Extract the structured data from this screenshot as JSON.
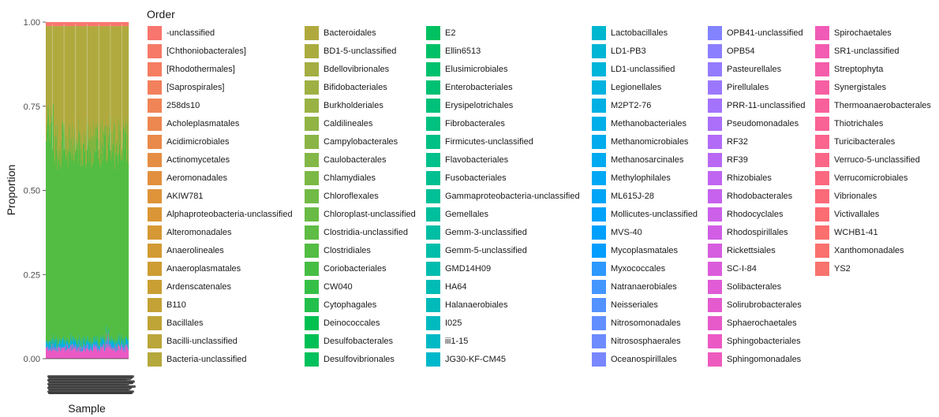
{
  "chart_data": {
    "type": "bar",
    "stacked": true,
    "xlabel": "Sample",
    "ylabel": "Proportion",
    "ylim": [
      0,
      1
    ],
    "yticks": [
      "0.00",
      "0.25",
      "0.50",
      "0.75",
      "1.00"
    ],
    "grid": false,
    "legend": {
      "title": "Order",
      "placement": "right"
    },
    "series": [
      {
        "name": "-unclassified",
        "color": "#F8766D"
      },
      {
        "name": "[Chthoniobacterales]",
        "color": "#F77A68"
      },
      {
        "name": "[Rhodothermales]",
        "color": "#F57D62"
      },
      {
        "name": "[Saprospirales]",
        "color": "#F3805C"
      },
      {
        "name": "258ds10",
        "color": "#F08456"
      },
      {
        "name": "Acholeplasmatales",
        "color": "#ED8750"
      },
      {
        "name": "Acidimicrobiales",
        "color": "#EA8A4A"
      },
      {
        "name": "Actinomycetales",
        "color": "#E68D44"
      },
      {
        "name": "Aeromonadales",
        "color": "#E2903E"
      },
      {
        "name": "AKIW781",
        "color": "#DE9339"
      },
      {
        "name": "Alphaproteobacteria-unclassified",
        "color": "#DA9636"
      },
      {
        "name": "Alteromonadales",
        "color": "#D69834"
      },
      {
        "name": "Anaerolineales",
        "color": "#D29B33"
      },
      {
        "name": "Anaeroplasmatales",
        "color": "#CD9D33"
      },
      {
        "name": "Ardenscatenales",
        "color": "#C99F34"
      },
      {
        "name": "B110",
        "color": "#C4A236"
      },
      {
        "name": "Bacillales",
        "color": "#BFA438"
      },
      {
        "name": "Bacilli-unclassified",
        "color": "#BAA63A"
      },
      {
        "name": "Bacteria-unclassified",
        "color": "#B5A83C"
      },
      {
        "name": "Bacteroidales",
        "color": "#B0AA3E"
      },
      {
        "name": "BD1-5-unclassified",
        "color": "#AAAC40"
      },
      {
        "name": "Bdellovibrionales",
        "color": "#A4AE42"
      },
      {
        "name": "Bifidobacteriales",
        "color": "#9EB043"
      },
      {
        "name": "Burkholderiales",
        "color": "#98B244"
      },
      {
        "name": "Caldilineales",
        "color": "#91B445"
      },
      {
        "name": "Campylobacterales",
        "color": "#8AB546"
      },
      {
        "name": "Caulobacterales",
        "color": "#83B746"
      },
      {
        "name": "Chlamydiales",
        "color": "#7BB846"
      },
      {
        "name": "Chloroflexales",
        "color": "#72BA46"
      },
      {
        "name": "Chloroplast-unclassified",
        "color": "#69BB45"
      },
      {
        "name": "Clostridia-unclassified",
        "color": "#5FBC44"
      },
      {
        "name": "Clostridiales",
        "color": "#53BD43"
      },
      {
        "name": "Coriobacteriales",
        "color": "#46BE44"
      },
      {
        "name": "CW040",
        "color": "#36BF47"
      },
      {
        "name": "Cytophagales",
        "color": "#23BF4B"
      },
      {
        "name": "Deinococcales",
        "color": "#00C050"
      },
      {
        "name": "Desulfobacterales",
        "color": "#00C055"
      },
      {
        "name": "Desulfovibrionales",
        "color": "#00C15B"
      },
      {
        "name": "E2",
        "color": "#00C161"
      },
      {
        "name": "Ellin6513",
        "color": "#00C167"
      },
      {
        "name": "Elusimicrobiales",
        "color": "#00C16D"
      },
      {
        "name": "Enterobacteriales",
        "color": "#00C173"
      },
      {
        "name": "Erysipelotrichales",
        "color": "#00C179"
      },
      {
        "name": "Fibrobacterales",
        "color": "#00C17F"
      },
      {
        "name": "Firmicutes-unclassified",
        "color": "#00C185"
      },
      {
        "name": "Flavobacteriales",
        "color": "#00C18B"
      },
      {
        "name": "Fusobacteriales",
        "color": "#00C091"
      },
      {
        "name": "Gammaproteobacteria-unclassified",
        "color": "#00C097"
      },
      {
        "name": "Gemellales",
        "color": "#00BF9D"
      },
      {
        "name": "Gemm-3-unclassified",
        "color": "#00BEA3"
      },
      {
        "name": "Gemm-5-unclassified",
        "color": "#00BEA9"
      },
      {
        "name": "GMD14H09",
        "color": "#00BDAF"
      },
      {
        "name": "HA64",
        "color": "#00BCB5"
      },
      {
        "name": "Halanaerobiales",
        "color": "#00BBBA"
      },
      {
        "name": "I025",
        "color": "#00BAC0"
      },
      {
        "name": "iii1-15",
        "color": "#00B9C5"
      },
      {
        "name": "JG30-KF-CM45",
        "color": "#00B8CB"
      },
      {
        "name": "Lactobacillales",
        "color": "#00B7D0"
      },
      {
        "name": "LD1-PB3",
        "color": "#00B5D5"
      },
      {
        "name": "LD1-unclassified",
        "color": "#00B4DA"
      },
      {
        "name": "Legionellales",
        "color": "#00B2DF"
      },
      {
        "name": "M2PT2-76",
        "color": "#00B0E4"
      },
      {
        "name": "Methanobacteriales",
        "color": "#00AEE8"
      },
      {
        "name": "Methanomicrobiales",
        "color": "#00ACED"
      },
      {
        "name": "Methanosarcinales",
        "color": "#00AAF0"
      },
      {
        "name": "Methylophilales",
        "color": "#00A8F4"
      },
      {
        "name": "ML615J-28",
        "color": "#00A5F7"
      },
      {
        "name": "Mollicutes-unclassified",
        "color": "#00A2FA"
      },
      {
        "name": "MVS-40",
        "color": "#00A0FC"
      },
      {
        "name": "Mycoplasmatales",
        "color": "#039DFE"
      },
      {
        "name": "Myxococcales",
        "color": "#2D99FF"
      },
      {
        "name": "Natranaerobiales",
        "color": "#4496FF"
      },
      {
        "name": "Neisseriales",
        "color": "#5492FF"
      },
      {
        "name": "Nitrosomonadales",
        "color": "#618FFF"
      },
      {
        "name": "Nitrososphaerales",
        "color": "#6D8BFF"
      },
      {
        "name": "Oceanospirillales",
        "color": "#7887FF"
      },
      {
        "name": "OPB41-unclassified",
        "color": "#8283FF"
      },
      {
        "name": "OPB54",
        "color": "#8B7FFF"
      },
      {
        "name": "Pasteurellales",
        "color": "#947BFE"
      },
      {
        "name": "Pirellulales",
        "color": "#9C77FD"
      },
      {
        "name": "PRR-11-unclassified",
        "color": "#A473FB"
      },
      {
        "name": "Pseudomonadales",
        "color": "#AB6FF9"
      },
      {
        "name": "RF32",
        "color": "#B26BF7"
      },
      {
        "name": "RF39",
        "color": "#B968F4"
      },
      {
        "name": "Rhizobiales",
        "color": "#C065F1"
      },
      {
        "name": "Rhodobacterales",
        "color": "#C662ED"
      },
      {
        "name": "Rhodocyclales",
        "color": "#CC60E9"
      },
      {
        "name": "Rhodospirillales",
        "color": "#D15EE5"
      },
      {
        "name": "Rickettsiales",
        "color": "#D65DE0"
      },
      {
        "name": "SC-I-84",
        "color": "#DB5CDB"
      },
      {
        "name": "Solibacterales",
        "color": "#E05BD5"
      },
      {
        "name": "Solirubrobacterales",
        "color": "#E45BD0"
      },
      {
        "name": "Sphaerochaetales",
        "color": "#E75ACA"
      },
      {
        "name": "Sphingobacteriales",
        "color": "#EB5AC4"
      },
      {
        "name": "Sphingomonadales",
        "color": "#EE5BBE"
      },
      {
        "name": "Spirochaetales",
        "color": "#F05BB7"
      },
      {
        "name": "SR1-unclassified",
        "color": "#F35CB1"
      },
      {
        "name": "Streptophyta",
        "color": "#F55DAA"
      },
      {
        "name": "Synergistales",
        "color": "#F65FA3"
      },
      {
        "name": "Thermoanaerobacterales",
        "color": "#F8609C"
      },
      {
        "name": "Thiotrichales",
        "color": "#F96295"
      },
      {
        "name": "Turicibacterales",
        "color": "#FA648E"
      },
      {
        "name": "Verruco-5-unclassified",
        "color": "#FA6687"
      },
      {
        "name": "Verrucomicrobiales",
        "color": "#FB6880"
      },
      {
        "name": "Vibrionales",
        "color": "#FB6A79"
      },
      {
        "name": "Victivallales",
        "color": "#FB6C73"
      },
      {
        "name": "WCHB1-41",
        "color": "#FB6F6E"
      },
      {
        "name": "Xanthomonadales",
        "color": "#FA716D"
      },
      {
        "name": "YS2",
        "color": "#F8736D"
      }
    ],
    "stack_profile_approx": [
      {
        "group": "Bacteroidales",
        "share": 0.3
      },
      {
        "group": "Clostridiales",
        "share": 0.62
      },
      {
        "group": "Lactobacillales / Methanobacteriales",
        "share": 0.02
      },
      {
        "group": "Sphingobacteriales / Spirochaetales",
        "share": 0.03
      },
      {
        "group": "other",
        "share": 0.03
      }
    ]
  }
}
